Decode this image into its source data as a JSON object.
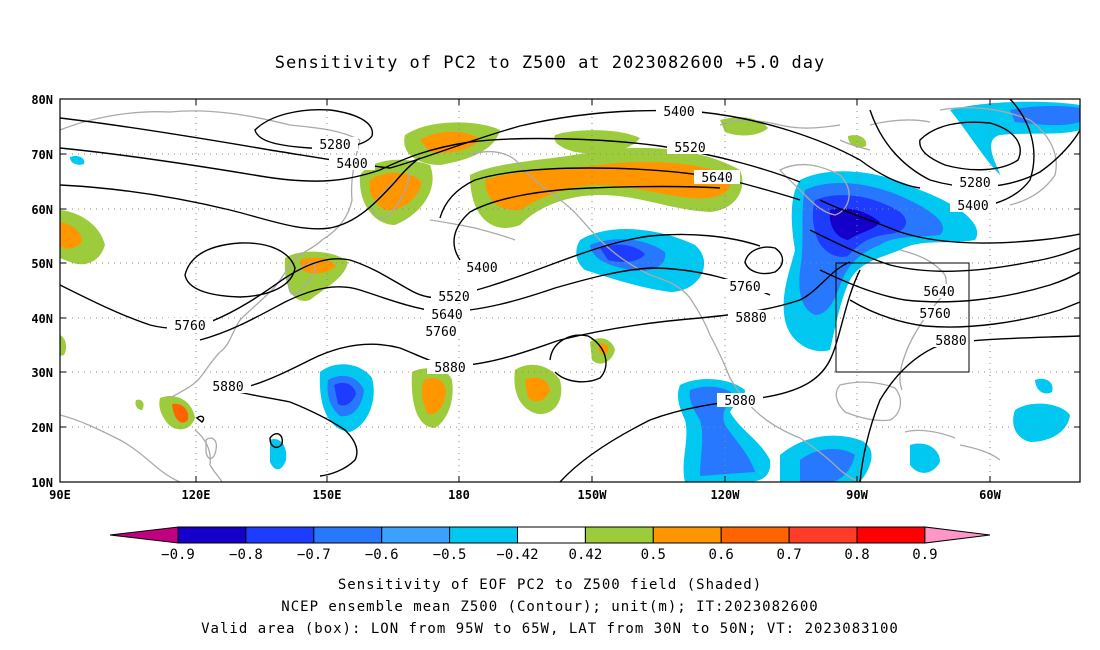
{
  "title": "Sensitivity of PC2 to Z500 at 2023082600 +5.0 day",
  "lat_labels": [
    "80N",
    "70N",
    "60N",
    "50N",
    "40N",
    "30N",
    "20N",
    "10N"
  ],
  "lon_labels": [
    "90E",
    "120E",
    "150E",
    "180",
    "150W",
    "120W",
    "90W",
    "60W"
  ],
  "contour_labels": {
    "c1": "5400",
    "c2": "5520",
    "c3": "5640",
    "c4": "5280",
    "c5": "5400",
    "c6": "5280",
    "c7": "5400",
    "c8": "5400",
    "c9": "5520",
    "c10": "5640",
    "c11": "5760",
    "c12": "5760",
    "c13": "5760",
    "c14": "5880",
    "c15": "5880",
    "c16": "5880",
    "c17": "5880",
    "c18": "5640",
    "c19": "5760",
    "c20": "5880"
  },
  "colorbar": {
    "labels": [
      "−0.9",
      "−0.8",
      "−0.7",
      "−0.6",
      "−0.5",
      "−0.42",
      "0.42",
      "0.5",
      "0.6",
      "0.7",
      "0.8",
      "0.9"
    ],
    "colors": [
      "#c0007f",
      "#1400c8",
      "#1e3cff",
      "#2878ff",
      "#3ca0ff",
      "#00c8f0",
      "#ffffff",
      "#9ccc3c",
      "#ff9600",
      "#ff6400",
      "#ff3c28",
      "#ff0000",
      "#ff96c8"
    ]
  },
  "caption": {
    "line1": "Sensitivity of EOF PC2 to Z500 field (Shaded)",
    "line2": "NCEP ensemble mean Z500 (Contour); unit(m); IT:2023082600",
    "line3": "Valid area (box): LON from 95W to 65W, LAT from 30N to 50N; VT: 2023083100"
  },
  "valid_box": {
    "lon_min": "95W",
    "lon_max": "65W",
    "lat_min": "30N",
    "lat_max": "50N"
  }
}
